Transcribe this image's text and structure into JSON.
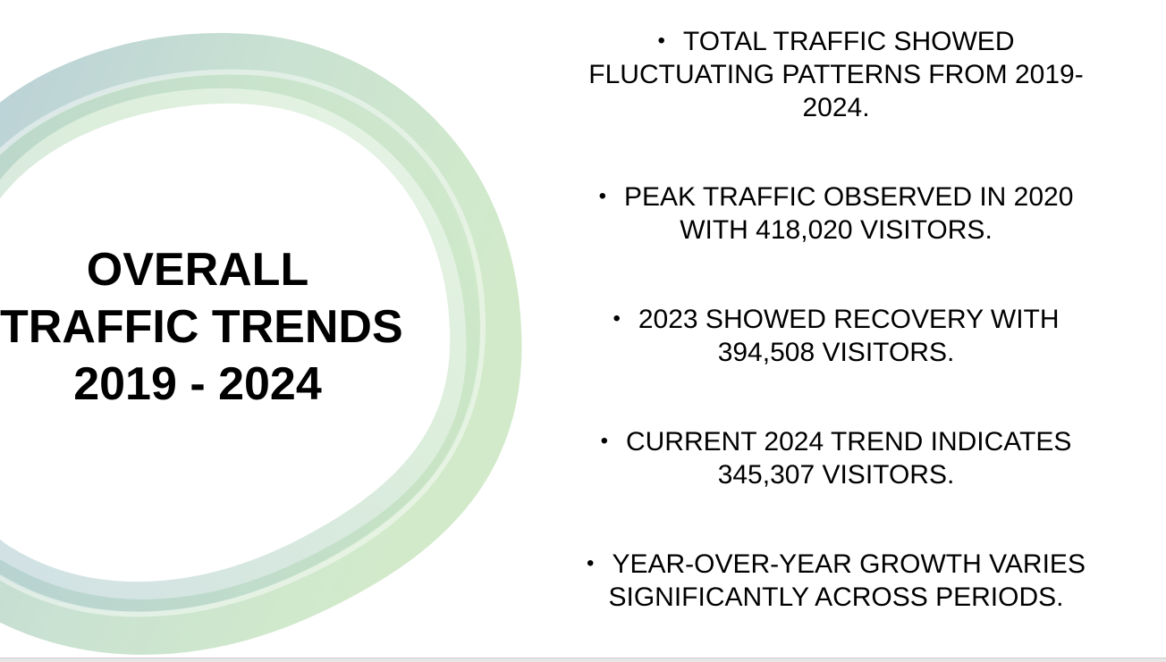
{
  "slide": {
    "title_lines": [
      "OVERALL",
      "TRAFFIC TRENDS",
      "2019 - 2024"
    ],
    "bullets": [
      {
        "lines": [
          "TOTAL TRAFFIC SHOWED",
          "FLUCTUATING PATTERNS FROM 2019-",
          "2024."
        ]
      },
      {
        "lines": [
          "PEAK TRAFFIC OBSERVED IN 2020",
          "WITH 418,020 VISITORS."
        ]
      },
      {
        "lines": [
          "2023 SHOWED RECOVERY WITH",
          "394,508 VISITORS."
        ]
      },
      {
        "lines": [
          "CURRENT 2024 TREND INDICATES",
          "345,307 VISITORS."
        ]
      },
      {
        "lines": [
          "YEAR-OVER-YEAR GROWTH VARIES",
          "SIGNIFICANTLY ACROSS PERIODS."
        ]
      }
    ],
    "bullet_glyph": "•",
    "colors": {
      "ring_blue": "#9fbccd",
      "ring_green": "#b9dcb4",
      "text": "#000000",
      "background": "#ffffff"
    }
  }
}
